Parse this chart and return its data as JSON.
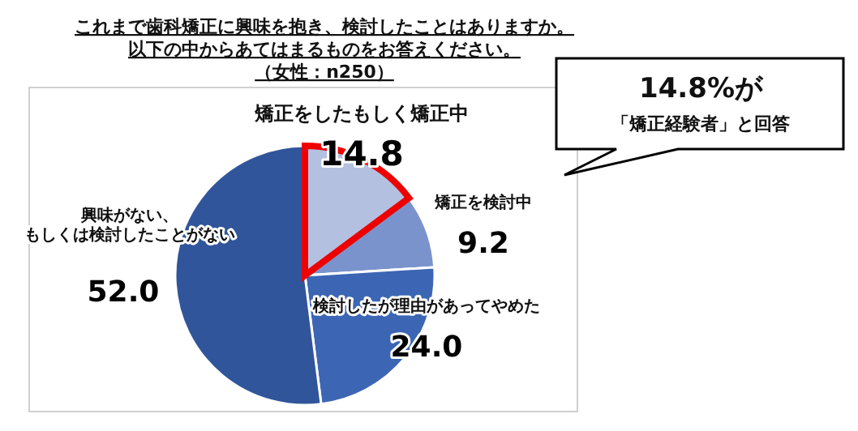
{
  "chart_data": {
    "type": "pie",
    "title": "これまで歯科矯正に興味を抱き、検討したことはありますか。以下の中からあてはまるものをお答えください。（女性：n250）",
    "categories": [
      "矯正をしたもしく矯正中",
      "矯正を検討中",
      "検討したが理由があってやめた",
      "興味がない、もしくは検討したことがない"
    ],
    "values": [
      14.8,
      9.2,
      24.0,
      52.0
    ],
    "value_labels": [
      "14.8",
      "9.2",
      "24.0",
      "52.0"
    ],
    "colors": [
      "#b4c0e0",
      "#7b93cc",
      "#3c66b4",
      "#31559a"
    ],
    "annotations": [
      "14.8%が",
      "「矯正経験者」と回答"
    ]
  }
}
